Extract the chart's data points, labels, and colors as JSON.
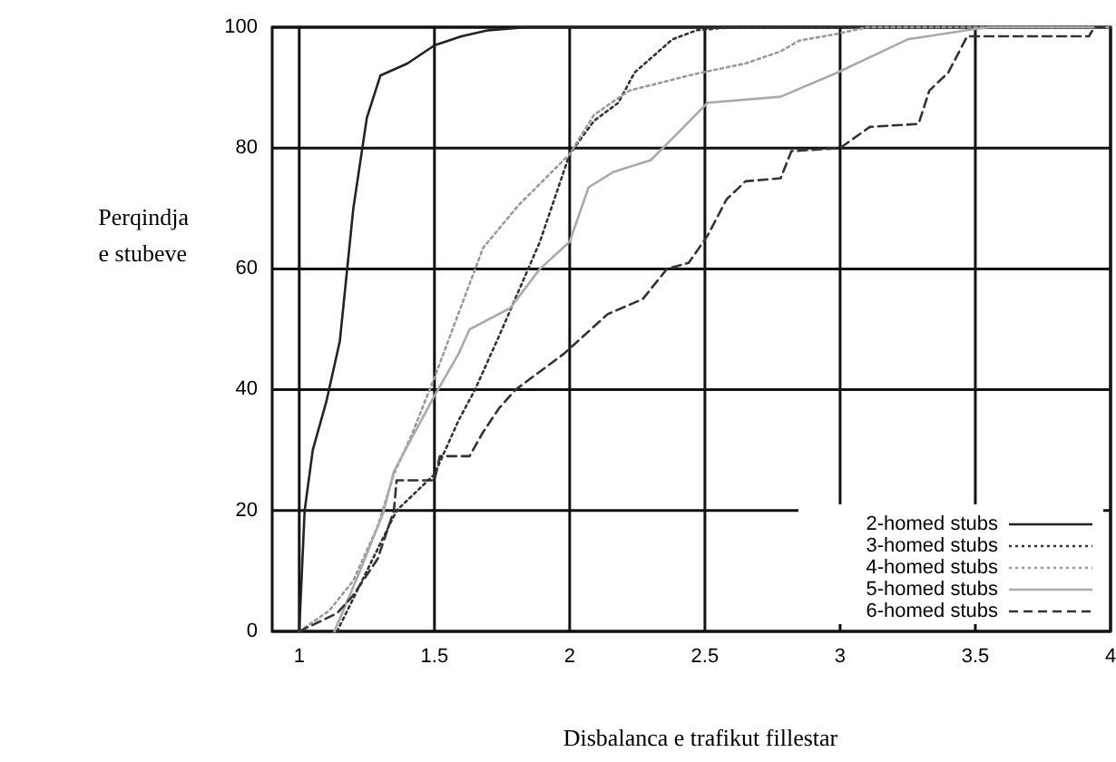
{
  "chart_data": {
    "type": "line",
    "xlabel": "Disbalanca e trafikut fillestar",
    "ylabel": "Perqindja e stubeve",
    "xlim": [
      0.9,
      4
    ],
    "ylim": [
      0,
      100
    ],
    "xticks": [
      1,
      1.5,
      2,
      2.5,
      3,
      3.5,
      4
    ],
    "yticks": [
      0,
      20,
      40,
      60,
      80,
      100
    ],
    "grid": true,
    "legend": "bottom right",
    "marker": "none",
    "series": [
      {
        "name": "2-homed stubs",
        "color": "#222222",
        "line_style": "solid",
        "x": [
          1,
          1.02,
          1.05,
          1.1,
          1.15,
          1.2,
          1.25,
          1.3,
          1.4,
          1.5,
          1.6,
          1.7,
          1.84,
          4
        ],
        "values": [
          0,
          20,
          30,
          38,
          48,
          70,
          85,
          92,
          94,
          97,
          98.5,
          99.5,
          100,
          100
        ]
      },
      {
        "name": "3-homed stubs",
        "color": "#333333",
        "line_style": "dotted",
        "x": [
          1.14,
          1.25,
          1.36,
          1.5,
          1.59,
          1.65,
          1.75,
          1.89,
          2,
          2.09,
          2.18,
          2.24,
          2.38,
          2.47,
          2.6,
          4
        ],
        "values": [
          0,
          10,
          20,
          26,
          35,
          40,
          50,
          64.5,
          79,
          84.5,
          87.5,
          92.5,
          98,
          99.5,
          100,
          100
        ]
      },
      {
        "name": "4-homed stubs",
        "color": "#999999",
        "line_style": "dotted",
        "x": [
          1,
          1.11,
          1.2,
          1.29,
          1.35,
          1.42,
          1.5,
          1.68,
          1.81,
          2,
          2.09,
          2.22,
          2.44,
          2.51,
          2.65,
          2.78,
          2.85,
          2.99,
          3.1,
          4
        ],
        "values": [
          0,
          3.4,
          8.4,
          17.4,
          26,
          33,
          42,
          63.5,
          70.5,
          79,
          85.5,
          89.5,
          92,
          92.7,
          94,
          96,
          97.8,
          98.9,
          100,
          100
        ]
      },
      {
        "name": "5-homed stubs",
        "color": "#aaaaaa",
        "line_style": "solid",
        "x": [
          1.13,
          1.22,
          1.31,
          1.35,
          1.5,
          1.59,
          1.63,
          1.78,
          1.89,
          2,
          2.07,
          2.16,
          2.3,
          2.4,
          2.51,
          2.78,
          2.99,
          3.25,
          3.47,
          3.55,
          4
        ],
        "values": [
          0,
          9.5,
          19.5,
          26.5,
          39,
          46,
          50,
          53.5,
          60,
          64.5,
          73.5,
          76,
          78,
          82.5,
          87.5,
          88.5,
          92.5,
          98,
          99.5,
          100,
          100
        ]
      },
      {
        "name": "6-homed stubs",
        "color": "#333333",
        "line_style": "dashed",
        "x": [
          1,
          1.14,
          1.2,
          1.29,
          1.35,
          1.36,
          1.5,
          1.52,
          1.63,
          1.68,
          1.74,
          1.8,
          1.98,
          2.14,
          2.27,
          2.36,
          2.44,
          2.51,
          2.58,
          2.65,
          2.78,
          2.82,
          3,
          3.11,
          3.29,
          3.33,
          3.4,
          3.47,
          3.92,
          3.94,
          4
        ],
        "values": [
          0,
          3,
          6,
          12,
          20,
          25,
          25,
          29,
          29,
          33,
          37,
          40,
          46,
          52.5,
          55,
          60,
          61,
          65.5,
          71.5,
          74.5,
          75,
          79.5,
          80,
          83.5,
          84,
          89.5,
          92.5,
          98.5,
          98.5,
          100,
          100
        ]
      }
    ]
  }
}
